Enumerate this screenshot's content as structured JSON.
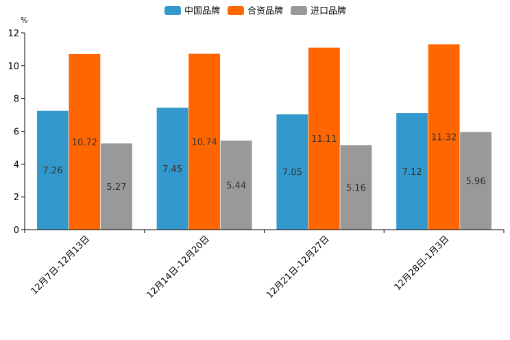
{
  "chart_data": {
    "type": "bar",
    "ylabel": "%",
    "ylim": [
      0,
      12
    ],
    "yticks": [
      0,
      2,
      4,
      6,
      8,
      10,
      12
    ],
    "categories": [
      "12月7日-12月13日",
      "12月14日-12月20日",
      "12月21日-12月27日",
      "12月28日-1月3日"
    ],
    "series": [
      {
        "name": "中国品牌",
        "color": "#3399cc",
        "values": [
          7.26,
          7.45,
          7.05,
          7.12
        ],
        "labels": [
          "7.26",
          "7.45",
          "7.05",
          "7.12"
        ]
      },
      {
        "name": "合资品牌",
        "color": "#ff6600",
        "values": [
          10.72,
          10.74,
          11.11,
          11.32
        ],
        "labels": [
          "10.72",
          "10.74",
          "11.11",
          "11.32"
        ]
      },
      {
        "name": "进口品牌",
        "color": "#999999",
        "values": [
          5.27,
          5.44,
          5.16,
          5.96
        ],
        "labels": [
          "5.27",
          "5.44",
          "5.16",
          "5.96"
        ]
      }
    ],
    "legend": "top-center",
    "grid": false
  }
}
